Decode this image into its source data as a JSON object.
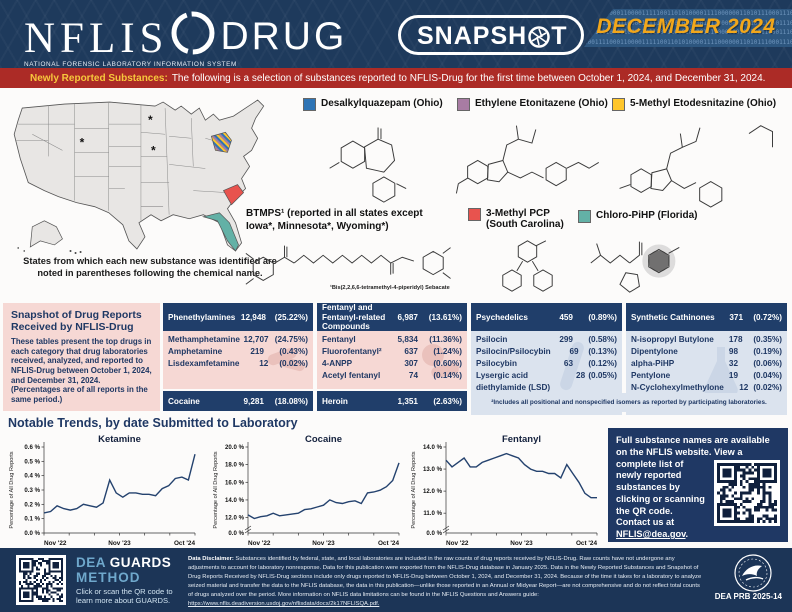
{
  "header": {
    "brand": "NFLIS",
    "product": "DRUG",
    "brand_sub": "NATIONAL FORENSIC LABORATORY INFORMATION SYSTEM",
    "badge_pre": "SNAPSH",
    "badge_post": "T",
    "issue": "DECEMBER 2024",
    "binary": "1001111000110000111110011010100001111000000110101110001110100010111100011000000111101010011001110000001001111100011010100001111",
    "colors": {
      "header_navy": "#1e3a5c",
      "band_blue": "#2d567f",
      "issue_gold": "#f2a71b"
    }
  },
  "banner": {
    "label": "Newly Reported Substances:",
    "text": "The following is a selection of substances reported to NFLIS-Drug for the first time between October 1, 2024, and December 31, 2024.",
    "bg_color": "#ac2b26",
    "label_color": "#f7c73c"
  },
  "map": {
    "caption": "States from which each new substance was identified are noted in parentheses following the chemical name.",
    "asterisk_states": [
      "Wyoming",
      "Minnesota",
      "Iowa"
    ]
  },
  "substances": [
    {
      "name": "Desalkylquazepam (Ohio)",
      "color": "#2e74b5"
    },
    {
      "name": "Ethylene Etonitazene (Ohio)",
      "color": "#a87ca3"
    },
    {
      "name": "5-Methyl Etodesnitazine (Ohio)",
      "color": "#ffc62b"
    },
    {
      "name": "BTMPS¹ (reported in all states except Iowa*, Minnesota*, Wyoming*)",
      "footnote": "¹Bis(2,2,6,6-tetramethyl-4-piperidyl) Sebacate",
      "color": ""
    },
    {
      "name": "3-Methyl PCP (South Carolina)",
      "color": "#e8534e"
    },
    {
      "name": "Chloro-PiHP (Florida)",
      "color": "#63b1a6"
    }
  ],
  "snapshot": {
    "title": "Snapshot of Drug Reports Received by NFLIS-Drug",
    "description": "These tables present the top drugs in each category that drug laboratories received, analyzed, and reported to NFLIS-Drug between October 1, 2024, and December 31, 2024. (Percentages are of all reports in the same period.)",
    "tables": [
      {
        "header": {
          "name": "Phenethylamines",
          "count": "12,948",
          "pct": "(25.22%)"
        },
        "rows": [
          [
            "Methamphetamine",
            "12,707",
            "(24.75%)"
          ],
          [
            "Amphetamine",
            "219",
            "(0.43%)"
          ],
          [
            "Lisdexamfetamine",
            "12",
            "(0.02%)"
          ]
        ],
        "footer": {
          "name": "Cocaine",
          "count": "9,281",
          "pct": "(18.08%)"
        }
      },
      {
        "header": {
          "name": "Fentanyl and Fentanyl-related Compounds",
          "count": "6,987",
          "pct": "(13.61%)"
        },
        "rows": [
          [
            "Fentanyl",
            "5,834",
            "(11.36%)"
          ],
          [
            "Fluorofentanyl²",
            "637",
            "(1.24%)"
          ],
          [
            "4-ANPP",
            "307",
            "(0.60%)"
          ],
          [
            "Acetyl fentanyl",
            "74",
            "(0.14%)"
          ]
        ],
        "footer": {
          "name": "Heroin",
          "count": "1,351",
          "pct": "(2.63%)"
        }
      },
      {
        "header": {
          "name": "Psychedelics",
          "count": "459",
          "pct": "(0.89%)"
        },
        "rows": [
          [
            "Psilocin",
            "299",
            "(0.58%)"
          ],
          [
            "Psilocin/Psilocybin",
            "69",
            "(0.13%)"
          ],
          [
            "Psilocybin",
            "63",
            "(0.12%)"
          ],
          [
            "Lysergic acid diethylamide (LSD)",
            "28",
            "(0.05%)"
          ]
        ]
      },
      {
        "header": {
          "name": "Synthetic Cathinones",
          "count": "371",
          "pct": "(0.72%)"
        },
        "rows": [
          [
            "N-isopropyl Butylone",
            "178",
            "(0.35%)"
          ],
          [
            "Dipentylone",
            "98",
            "(0.19%)"
          ],
          [
            "alpha-PiHP",
            "32",
            "(0.06%)"
          ],
          [
            "Pentylone",
            "19",
            "(0.04%)"
          ],
          [
            "N-Cyclohexylmethylone",
            "12",
            "(0.02%)"
          ]
        ]
      }
    ],
    "footnote": "²Includes all positional and nonspecified isomers as reported by participating laboratories."
  },
  "trends": {
    "title": "Notable Trends, by date Submitted to Laboratory"
  },
  "chart_data": [
    {
      "type": "line",
      "title": "Ketamine",
      "ylabel": "Percentage of All Drug Reports",
      "x_ticks": [
        "Nov '22",
        "Nov '23",
        "Oct '24"
      ],
      "y_ticks": [
        "0.0 %",
        "0.1 %",
        "0.2 %",
        "0.3 %",
        "0.4 %",
        "0.5 %",
        "0.6 %"
      ],
      "y_tick_vals": [
        0,
        0.1,
        0.2,
        0.3,
        0.4,
        0.5,
        0.6
      ],
      "ylim": [
        0,
        0.6
      ],
      "axis_break": false,
      "grid": false,
      "line_color": "#24426e",
      "values": [
        0.14,
        0.15,
        0.19,
        0.17,
        0.16,
        0.17,
        0.2,
        0.19,
        0.18,
        0.21,
        0.37,
        0.28,
        0.25,
        0.28,
        0.28,
        0.27,
        0.27,
        0.26,
        0.31,
        0.33,
        0.38,
        0.39,
        0.37,
        0.55
      ]
    },
    {
      "type": "line",
      "title": "Cocaine",
      "ylabel": "Percentage of All Drug Reports",
      "x_ticks": [
        "Nov '22",
        "Nov '23",
        "Oct '24"
      ],
      "y_ticks": [
        "12.0 %",
        "14.0 %",
        "16.0 %",
        "18.0 %",
        "20.0 %"
      ],
      "y_tick_vals": [
        12,
        14,
        16,
        18,
        20
      ],
      "zero_label": "0.0 %",
      "ylim": [
        11.5,
        20
      ],
      "axis_break": true,
      "grid": false,
      "line_color": "#24426e",
      "values": [
        12.3,
        11.9,
        12.1,
        12.2,
        12.5,
        12.2,
        12.3,
        12.4,
        12.5,
        12.9,
        13.0,
        13.2,
        13.4,
        14.0,
        13.7,
        13.6,
        13.8,
        13.9,
        13.6,
        14.8,
        14.9,
        15.1,
        15.5,
        16.2,
        18.2
      ]
    },
    {
      "type": "line",
      "title": "Fentanyl",
      "ylabel": "Percentage of All Drug Reports",
      "x_ticks": [
        "Nov '22",
        "Nov '23",
        "Oct '24"
      ],
      "y_ticks": [
        "11.0 %",
        "12.0 %",
        "13.0 %",
        "14.0 %"
      ],
      "y_tick_vals": [
        11,
        12,
        13,
        14
      ],
      "zero_label": "0.0 %",
      "ylim": [
        10.6,
        14
      ],
      "axis_break": true,
      "grid": false,
      "line_color": "#24426e",
      "values": [
        13.4,
        13.1,
        13.3,
        13.5,
        13.1,
        13.1,
        13.3,
        13.4,
        13.5,
        13.6,
        13.7,
        13.6,
        13.5,
        13.2,
        13.0,
        12.9,
        12.9,
        12.8,
        12.8,
        12.6,
        13.2,
        12.8,
        12.4,
        11.9,
        11.7,
        11.7
      ]
    }
  ],
  "info_box": {
    "part1": "Full substance names are available on the NFLIS website. View a complete ",
    "part2": "list of newly reported substances by clicking or scanning the QR code. Contact us at ",
    "link": "NFLIS@dea.gov",
    "after": "."
  },
  "footer": {
    "guards_dea": "DEA",
    "guards_rest": " GUARDS",
    "guards_method": "METHOD",
    "guards_caption": "Click or scan the QR code to learn more about GUARDS.",
    "disclaimer_label": "Data Disclaimer:",
    "disclaimer": " Substances identified by federal, state, and local laboratories are included in the raw counts of drug reports received by NFLIS-Drug. Raw counts have not undergone any adjustments to account for laboratory nonresponse. Data for this publication were exported from the NFLIS-Drug database in January 2025. Data in the Newly Reported Substances and Snapshot of Drug Reports Received by NFLIS-Drug sections include only drugs reported to NFLIS-Drug between October 1, 2024, and December 31, 2024. Because of the time it takes for a laboratory to analyze seized material and transfer the data to the NFLIS database, the data in this publication—unlike those reported in an Annual or Midyear Report—are not comprehensive and do not reflect total counts of drugs analyzed over the period. More information on NFLIS data limitations can be found in the NFLIS Questions and Answers guide: ",
    "disclaimer_url": "https://www.nflis.deadiversion.usdoj.gov/nflisdata/docs/2k17NFLISQA.pdf.",
    "prb": "DEA PRB 2025-14"
  }
}
